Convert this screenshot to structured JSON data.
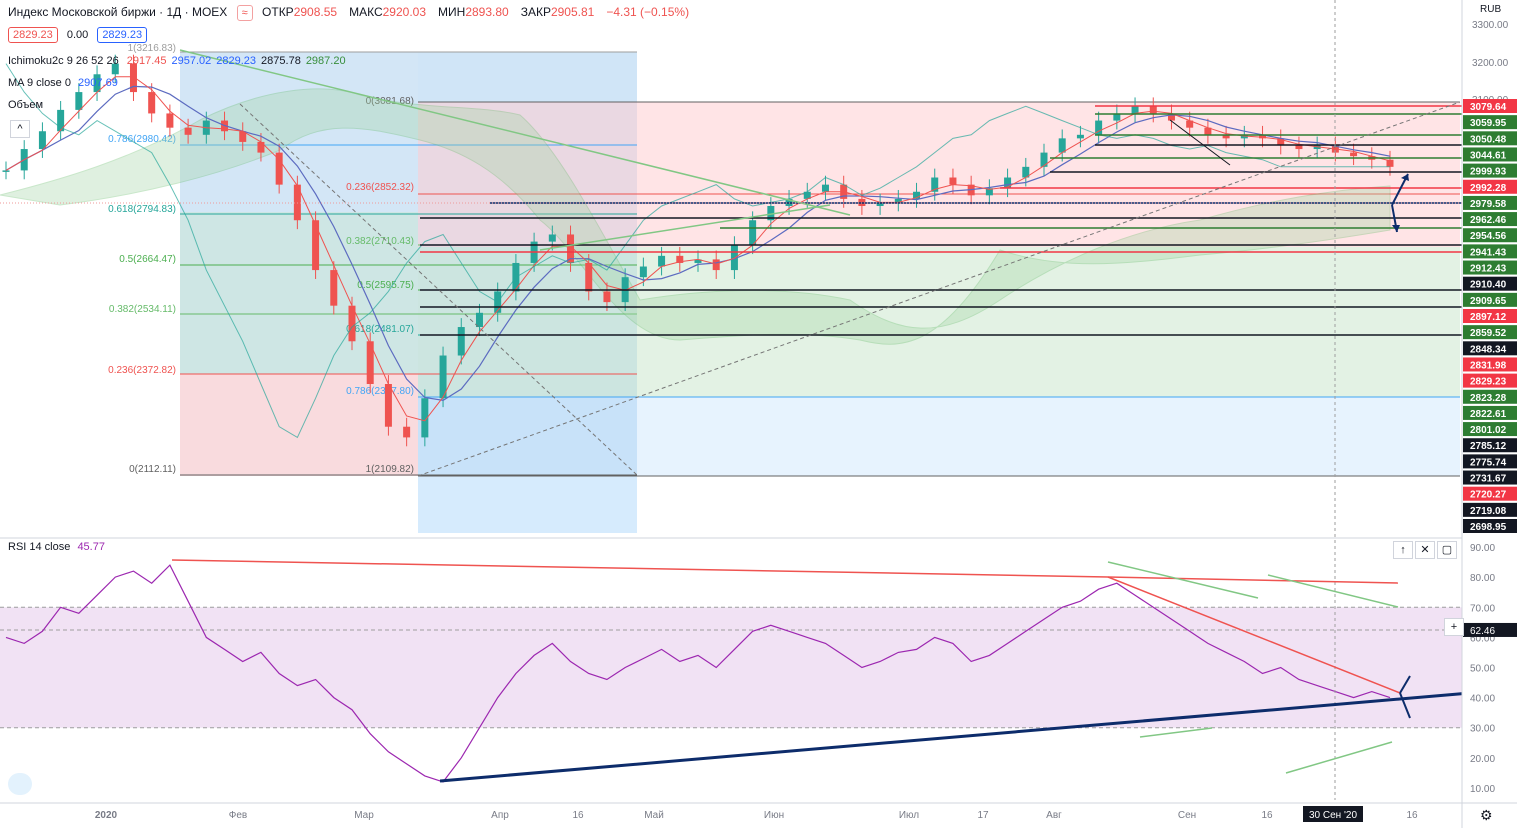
{
  "header": {
    "title": "Индекс Московской биржи · 1Д · MOEX",
    "ohlc": [
      {
        "k": "ОТКР",
        "v": "2908.55"
      },
      {
        "k": "МАКС",
        "v": "2920.03"
      },
      {
        "k": "МИН",
        "v": "2893.80"
      },
      {
        "k": "ЗАКР",
        "v": "2905.81"
      },
      {
        "k": "",
        "v": "−4.31 (−0.15%)"
      }
    ],
    "bid": "2829.23",
    "spread": "0.00",
    "ask": "2829.23",
    "currency": "RUB"
  },
  "legends": {
    "ichimoku_name": "Ichimoku2c 9 26 52 26",
    "ichimoku_values": [
      "2917.45",
      "2957.02",
      "2829.23",
      "2875.78",
      "2987.20"
    ],
    "ichimoku_colors": [
      "#ef5350",
      "#2962ff",
      "#2962ff",
      "#131722",
      "#388e3c"
    ],
    "ma_name": "MA 9 close 0",
    "ma_value": "2907.69",
    "volume_name": "Объем",
    "rsi_name": "RSI 14 close",
    "rsi_value": "45.77"
  },
  "chart_data": [
    {
      "type": "candlestick",
      "title": "Индекс Московской биржи · 1Д · MOEX",
      "y_axis_ticks": [
        3300,
        3200,
        3100
      ],
      "y_axis_price_labels": [
        {
          "v": "3079.64",
          "c": "#f23645"
        },
        {
          "v": "3059.95",
          "c": "#2e7d32"
        },
        {
          "v": "3050.48",
          "c": "#2e7d32"
        },
        {
          "v": "3044.61",
          "c": "#2e7d32"
        },
        {
          "v": "2999.93",
          "c": "#2e7d32"
        },
        {
          "v": "2992.28",
          "c": "#f23645"
        },
        {
          "v": "2979.58",
          "c": "#2e7d32"
        },
        {
          "v": "2962.46",
          "c": "#2e7d32"
        },
        {
          "v": "2954.56",
          "c": "#2e7d32"
        },
        {
          "v": "2941.43",
          "c": "#2e7d32"
        },
        {
          "v": "2912.43",
          "c": "#2e7d32"
        },
        {
          "v": "2910.40",
          "c": "#131722"
        },
        {
          "v": "2909.65",
          "c": "#2e7d32"
        },
        {
          "v": "2897.12",
          "c": "#f23645"
        },
        {
          "v": "2859.52",
          "c": "#2e7d32"
        },
        {
          "v": "2848.34",
          "c": "#131722"
        },
        {
          "v": "2831.98",
          "c": "#f23645"
        },
        {
          "v": "2829.23",
          "c": "#f23645"
        },
        {
          "v": "2823.28",
          "c": "#2e7d32"
        },
        {
          "v": "2822.61",
          "c": "#2e7d32"
        },
        {
          "v": "2801.02",
          "c": "#2e7d32"
        },
        {
          "v": "2785.12",
          "c": "#131722"
        },
        {
          "v": "2775.74",
          "c": "#131722"
        },
        {
          "v": "2731.67",
          "c": "#131722"
        },
        {
          "v": "2720.27",
          "c": "#f23645"
        },
        {
          "v": "2719.08",
          "c": "#131722"
        },
        {
          "v": "2698.95",
          "c": "#131722"
        }
      ],
      "x_axis_labels": [
        "2020",
        "Фев",
        "Мар",
        "Апр",
        "16",
        "Май",
        "Июн",
        "Июл",
        "17",
        "Авг",
        "Сен",
        "16",
        "30 Сен '20",
        "16"
      ],
      "fib_left": [
        "1(3216.83)",
        "0.786(2980.42)",
        "0.618(2794.83)",
        "0.5(2664.47)",
        "0.382(2534.11)",
        "0.236(2372.82)",
        "0(2112.11)"
      ],
      "fib_right": [
        "0(3081.68)",
        "0.236(2852.32)",
        "0.382(2710.43)",
        "0.5(2595.75)",
        "0.618(2481.07)",
        "0.786(2317.80)",
        "1(2109.82)"
      ],
      "close_series": [
        2900,
        2960,
        3010,
        3070,
        3120,
        3170,
        3200,
        3120,
        3060,
        3020,
        3000,
        3040,
        3010,
        2980,
        2950,
        2860,
        2760,
        2620,
        2520,
        2420,
        2300,
        2180,
        2150,
        2260,
        2380,
        2460,
        2500,
        2560,
        2640,
        2700,
        2720,
        2640,
        2560,
        2530,
        2600,
        2630,
        2660,
        2640,
        2650,
        2620,
        2690,
        2760,
        2800,
        2820,
        2840,
        2860,
        2820,
        2800,
        2810,
        2820,
        2840,
        2880,
        2860,
        2830,
        2850,
        2880,
        2910,
        2950,
        2990,
        3000,
        3040,
        3060,
        3080,
        3060,
        3040,
        3020,
        3000,
        2990,
        3000,
        2990,
        2970,
        2960,
        2970,
        2950,
        2940,
        2930,
        2910
      ]
    },
    {
      "type": "line",
      "title": "RSI 14 close",
      "y_axis_ticks": [
        90,
        80,
        70,
        60,
        50,
        40,
        30,
        20,
        10
      ],
      "ylim": [
        6,
        92
      ],
      "crosshair_label": "62.46",
      "overbought": 70,
      "oversold": 30,
      "values": [
        60,
        58,
        62,
        70,
        68,
        74,
        80,
        82,
        78,
        84,
        72,
        60,
        56,
        52,
        55,
        48,
        44,
        46,
        40,
        36,
        28,
        22,
        18,
        14,
        12,
        20,
        30,
        40,
        48,
        54,
        58,
        52,
        48,
        46,
        50,
        53,
        56,
        52,
        54,
        50,
        56,
        62,
        64,
        62,
        60,
        58,
        54,
        50,
        52,
        55,
        56,
        60,
        58,
        52,
        54,
        58,
        62,
        66,
        70,
        72,
        76,
        78,
        74,
        70,
        66,
        62,
        58,
        55,
        52,
        48,
        50,
        46,
        44,
        42,
        40,
        42,
        40
      ]
    }
  ],
  "controls": {
    "up": "↑",
    "close": "✕",
    "max": "▢",
    "plus": "+",
    "gear": "⚙"
  }
}
